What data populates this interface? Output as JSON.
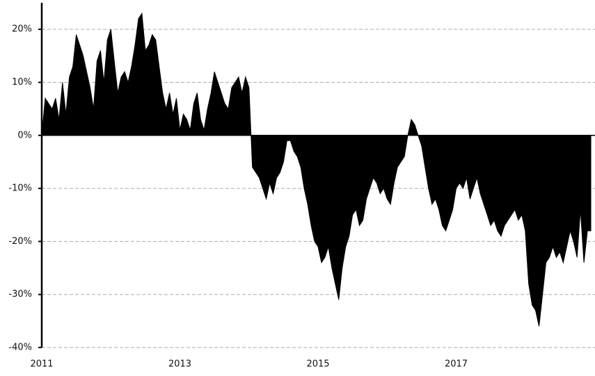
{
  "chart_data": {
    "type": "area",
    "color": "#000000",
    "x": [
      2011,
      2011.05,
      2011.1,
      2011.15,
      2011.2,
      2011.25,
      2011.3,
      2011.35,
      2011.4,
      2011.45,
      2011.5,
      2011.55,
      2011.6,
      2011.65,
      2011.7,
      2011.75,
      2011.8,
      2011.85,
      2011.9,
      2011.95,
      2012,
      2012.05,
      2012.1,
      2012.15,
      2012.2,
      2012.25,
      2012.3,
      2012.35,
      2012.4,
      2012.45,
      2012.5,
      2012.55,
      2012.6,
      2012.65,
      2012.7,
      2012.75,
      2012.8,
      2012.85,
      2012.9,
      2012.95,
      2013,
      2013.05,
      2013.1,
      2013.15,
      2013.2,
      2013.25,
      2013.3,
      2013.35,
      2013.4,
      2013.45,
      2013.5,
      2013.55,
      2013.6,
      2013.65,
      2013.7,
      2013.75,
      2013.8,
      2013.85,
      2013.9,
      2013.95,
      2014,
      2014.05,
      2014.1,
      2014.15,
      2014.2,
      2014.25,
      2014.3,
      2014.35,
      2014.4,
      2014.45,
      2014.5,
      2014.55,
      2014.6,
      2014.65,
      2014.7,
      2014.75,
      2014.8,
      2014.85,
      2014.9,
      2014.95,
      2015,
      2015.05,
      2015.1,
      2015.15,
      2015.2,
      2015.25,
      2015.3,
      2015.35,
      2015.4,
      2015.45,
      2015.5,
      2015.55,
      2015.6,
      2015.65,
      2015.7,
      2015.75,
      2015.8,
      2015.85,
      2015.9,
      2015.95,
      2016,
      2016.05,
      2016.1,
      2016.15,
      2016.2,
      2016.25,
      2016.3,
      2016.35,
      2016.4,
      2016.45,
      2016.5,
      2016.55,
      2016.6,
      2016.65,
      2016.7,
      2016.75,
      2016.8,
      2016.85,
      2016.9,
      2016.95,
      2017,
      2017.05,
      2017.1,
      2017.15,
      2017.2,
      2017.25,
      2017.3,
      2017.35,
      2017.4,
      2017.45,
      2017.5,
      2017.55,
      2017.6,
      2017.65,
      2017.7,
      2017.75,
      2017.8,
      2017.85,
      2017.9,
      2017.95,
      2018,
      2018.05,
      2018.1,
      2018.15,
      2018.2,
      2018.25,
      2018.3,
      2018.35,
      2018.4,
      2018.45,
      2018.5,
      2018.55,
      2018.6,
      2018.65,
      2018.7,
      2018.75,
      2018.8,
      2018.85,
      2018.9,
      2018.95
    ],
    "values": [
      0,
      7,
      6,
      5,
      7,
      3,
      10,
      4,
      11,
      13,
      19,
      17,
      15,
      12,
      9,
      5,
      14,
      16,
      10,
      18,
      20,
      14,
      8,
      11,
      12,
      10,
      13,
      17,
      22,
      23,
      16,
      17,
      19,
      18,
      13,
      8,
      5,
      8,
      4,
      7,
      1,
      4,
      3,
      1,
      6,
      8,
      3,
      1,
      5,
      8,
      12,
      10,
      8,
      6,
      5,
      9,
      10,
      11,
      8,
      11,
      9,
      -6,
      -7,
      -8,
      -10,
      -12,
      -9,
      -11,
      -8,
      -7,
      -5,
      -1,
      -1,
      -3,
      -4,
      -6,
      -10,
      -13,
      -17,
      -20,
      -21,
      -24,
      -23,
      -21,
      -25,
      -28,
      -31,
      -25,
      -21,
      -19,
      -15,
      -14,
      -17,
      -16,
      -12,
      -10,
      -8,
      -9,
      -11,
      -10,
      -12,
      -13,
      -9,
      -6,
      -5,
      -4,
      0,
      3,
      2,
      0,
      -2,
      -6,
      -10,
      -13,
      -12,
      -14,
      -17,
      -18,
      -16,
      -14,
      -10,
      -9,
      -10,
      -8,
      -12,
      -10,
      -8,
      -11,
      -13,
      -15,
      -17,
      -16,
      -18,
      -19,
      -17,
      -16,
      -15,
      -14,
      -16,
      -15,
      -18,
      -28,
      -32,
      -33,
      -36,
      -30,
      -24,
      -23,
      -21,
      -23,
      -22,
      -24,
      -21,
      -18,
      -20,
      -23,
      -14,
      -24,
      -18,
      -18
    ],
    "xlim": [
      2011,
      2019
    ],
    "xticks": [
      2011,
      2013,
      2015,
      2017
    ],
    "ylim": [
      -40,
      25
    ],
    "yticks": [
      {
        "value": -40,
        "label": "-40%"
      },
      {
        "value": -30,
        "label": "-30%"
      },
      {
        "value": -20,
        "label": "-20%"
      },
      {
        "value": -10,
        "label": "-10%"
      },
      {
        "value": 0,
        "label": "0%"
      },
      {
        "value": 10,
        "label": "10%"
      },
      {
        "value": 20,
        "label": "20%"
      }
    ],
    "grid": true
  }
}
